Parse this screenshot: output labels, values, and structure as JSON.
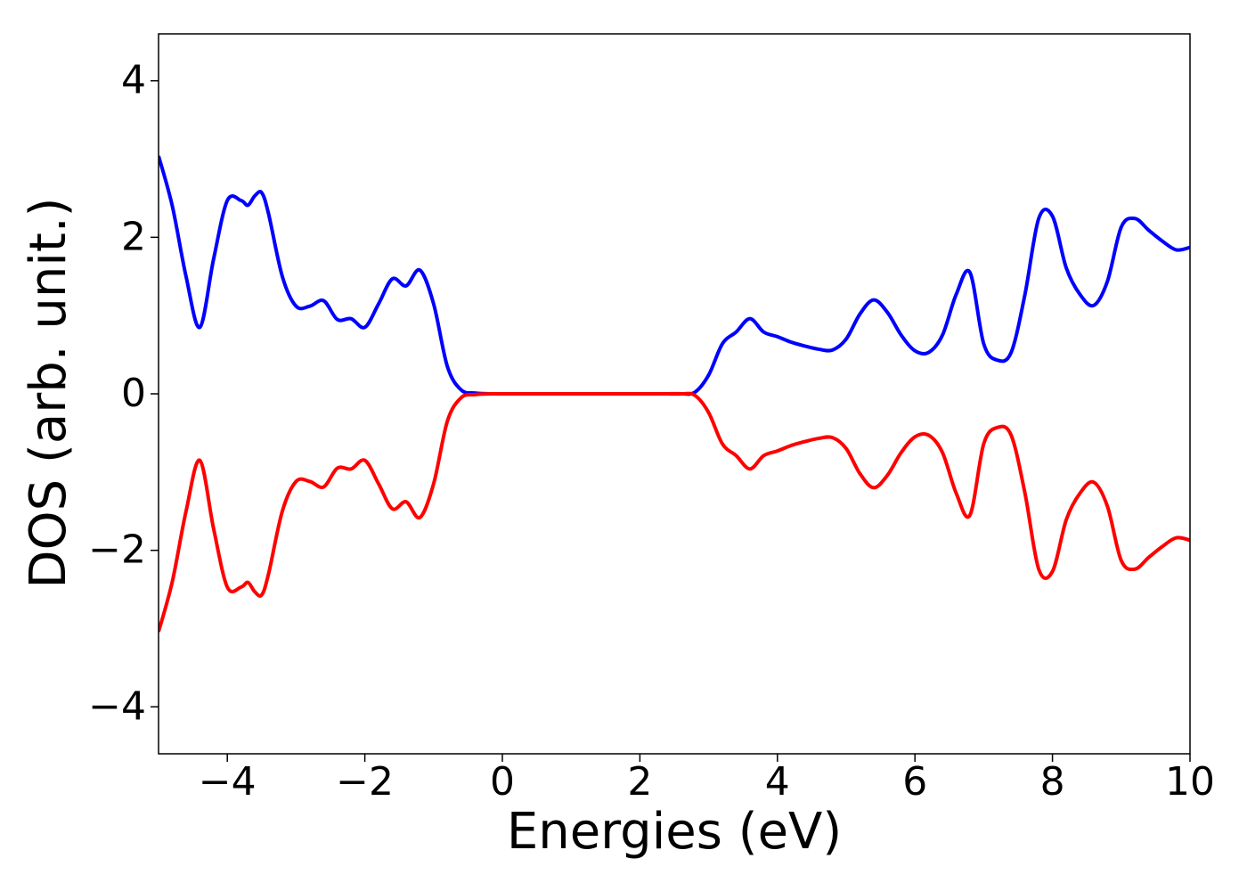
{
  "chart_data": {
    "type": "line",
    "x_label": "Energies (eV)",
    "y_label": "DOS (arb. unit.)",
    "x": [
      -5,
      -4.8,
      -4.6,
      -4.4,
      -4.2,
      -4.0,
      -3.8,
      -3.7,
      -3.6,
      -3.5,
      -3.4,
      -3.2,
      -3.0,
      -2.8,
      -2.6,
      -2.4,
      -2.2,
      -2.0,
      -1.8,
      -1.6,
      -1.4,
      -1.2,
      -1.0,
      -0.8,
      -0.6,
      -0.4,
      -0.2,
      0,
      0.2,
      0.4,
      0.6,
      0.8,
      1.0,
      1.2,
      1.4,
      1.6,
      1.8,
      2.0,
      2.2,
      2.4,
      2.6,
      2.8,
      3.0,
      3.2,
      3.4,
      3.6,
      3.8,
      4.0,
      4.2,
      4.4,
      4.6,
      4.8,
      5.0,
      5.2,
      5.4,
      5.6,
      5.8,
      6.0,
      6.2,
      6.4,
      6.6,
      6.8,
      7.0,
      7.2,
      7.4,
      7.6,
      7.8,
      8.0,
      8.2,
      8.4,
      8.6,
      8.8,
      9.0,
      9.2,
      9.4,
      9.6,
      9.8,
      10.0
    ],
    "series": [
      {
        "color": "#0000ff",
        "values": [
          3.04,
          2.4,
          1.5,
          0.85,
          1.72,
          2.47,
          2.47,
          2.41,
          2.53,
          2.57,
          2.3,
          1.5,
          1.12,
          1.12,
          1.19,
          0.95,
          0.96,
          0.85,
          1.15,
          1.47,
          1.38,
          1.58,
          1.15,
          0.35,
          0.05,
          0.01,
          0,
          0,
          0,
          0,
          0,
          0,
          0,
          0,
          0,
          0,
          0,
          0,
          0,
          0,
          0,
          0.02,
          0.24,
          0.64,
          0.79,
          0.96,
          0.79,
          0.73,
          0.66,
          0.61,
          0.57,
          0.56,
          0.7,
          1.02,
          1.2,
          1.04,
          0.75,
          0.55,
          0.53,
          0.75,
          1.27,
          1.55,
          0.64,
          0.43,
          0.53,
          1.27,
          2.24,
          2.27,
          1.61,
          1.27,
          1.13,
          1.44,
          2.13,
          2.24,
          2.09,
          1.95,
          1.84,
          1.87
        ]
      },
      {
        "color": "#ff0000",
        "values": [
          -3.04,
          -2.4,
          -1.5,
          -0.85,
          -1.72,
          -2.47,
          -2.47,
          -2.41,
          -2.53,
          -2.57,
          -2.3,
          -1.5,
          -1.12,
          -1.12,
          -1.19,
          -0.95,
          -0.96,
          -0.85,
          -1.15,
          -1.47,
          -1.38,
          -1.58,
          -1.15,
          -0.35,
          -0.05,
          -0.01,
          0,
          0,
          0,
          0,
          0,
          0,
          0,
          0,
          0,
          0,
          0,
          0,
          0,
          0,
          0,
          -0.02,
          -0.24,
          -0.64,
          -0.79,
          -0.96,
          -0.79,
          -0.73,
          -0.66,
          -0.61,
          -0.57,
          -0.56,
          -0.7,
          -1.02,
          -1.2,
          -1.04,
          -0.75,
          -0.55,
          -0.53,
          -0.75,
          -1.27,
          -1.55,
          -0.64,
          -0.43,
          -0.53,
          -1.27,
          -2.24,
          -2.27,
          -1.61,
          -1.27,
          -1.13,
          -1.44,
          -2.13,
          -2.24,
          -2.09,
          -1.95,
          -1.84,
          -1.87
        ]
      }
    ],
    "xlim": [
      -5,
      10
    ],
    "xticks": [
      {
        "value": -4,
        "label": "−4"
      },
      {
        "value": -2,
        "label": "−2"
      },
      0,
      2,
      4,
      6,
      8,
      10
    ],
    "ylim": [
      -4.6,
      4.6
    ],
    "yticks": [
      {
        "value": -4,
        "label": "−4"
      },
      {
        "value": -2,
        "label": "−2"
      },
      0,
      2,
      4
    ],
    "grid": false
  }
}
